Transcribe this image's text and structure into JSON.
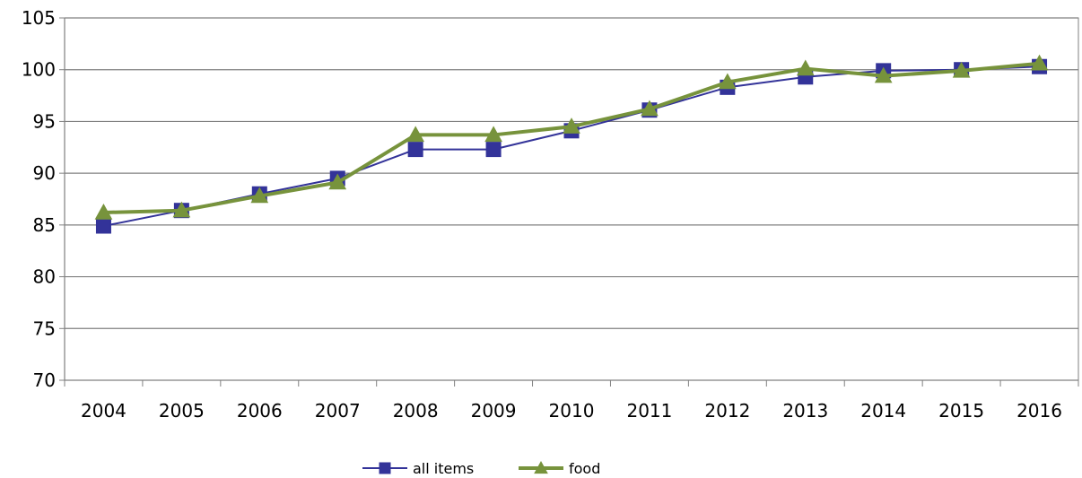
{
  "chart_data": {
    "type": "line",
    "title": "",
    "xlabel": "",
    "ylabel": "",
    "categories": [
      "2004",
      "2005",
      "2006",
      "2007",
      "2008",
      "2009",
      "2010",
      "2011",
      "2012",
      "2013",
      "2014",
      "2015",
      "2016"
    ],
    "ylim": [
      70,
      105
    ],
    "yticks": [
      70,
      75,
      80,
      85,
      90,
      95,
      100,
      105
    ],
    "grid": "horizontal",
    "legend_position": "bottom",
    "series": [
      {
        "name": "all items",
        "color": "#333399",
        "marker": "square",
        "values": [
          84.9,
          86.4,
          88.0,
          89.5,
          92.3,
          92.3,
          94.1,
          96.1,
          98.3,
          99.3,
          99.9,
          100.0,
          100.3
        ]
      },
      {
        "name": "food",
        "color": "#77933C",
        "marker": "triangle",
        "values": [
          86.2,
          86.4,
          87.8,
          89.1,
          93.7,
          93.7,
          94.5,
          96.2,
          98.8,
          100.1,
          99.4,
          99.9,
          100.6
        ]
      }
    ]
  }
}
